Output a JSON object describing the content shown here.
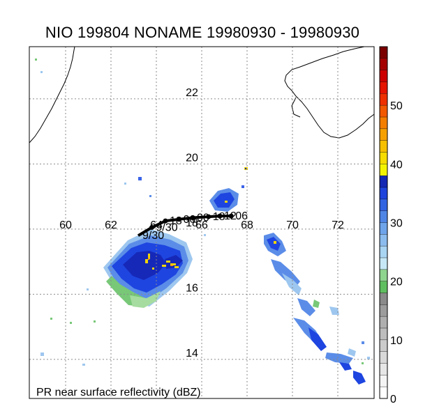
{
  "title": "NIO 199804 NONAME 19980930 - 19980930",
  "caption": "PR near surface reflectivity (dBZ)",
  "map": {
    "lon_range": [
      58.4,
      73.6
    ],
    "lat_range": [
      12.8,
      23.6
    ],
    "lon_ticks": [
      {
        "lon": 60,
        "label": "60"
      },
      {
        "lon": 62,
        "label": "62"
      },
      {
        "lon": 64,
        "label": "64"
      },
      {
        "lon": 66,
        "label": "66"
      },
      {
        "lon": 68,
        "label": "68"
      },
      {
        "lon": 70,
        "label": "70"
      },
      {
        "lon": 72,
        "label": "72"
      }
    ],
    "lat_ticks": [
      {
        "lat": 14,
        "label": "14"
      },
      {
        "lat": 16,
        "label": "16"
      },
      {
        "lat": 18,
        "label": "18"
      },
      {
        "lat": 20,
        "label": "20"
      },
      {
        "lat": 22,
        "label": "22"
      }
    ],
    "grid": true,
    "track": {
      "points": [
        [
          63.2,
          17.8
        ],
        [
          63.8,
          18.05
        ],
        [
          64.4,
          18.25
        ],
        [
          65.0,
          18.3
        ],
        [
          65.6,
          18.35
        ],
        [
          66.3,
          18.38
        ],
        [
          66.8,
          18.4
        ],
        [
          67.3,
          18.4
        ]
      ],
      "labels": [
        "9/30",
        "9/30",
        "18",
        "06",
        "00",
        "18",
        "12",
        "06"
      ],
      "color": "#000000"
    }
  },
  "colorbar": {
    "min": 0,
    "max": 60,
    "ticks": [
      {
        "value": 0,
        "label": "0"
      },
      {
        "value": 10,
        "label": "10"
      },
      {
        "value": 20,
        "label": "20"
      },
      {
        "value": 30,
        "label": "30"
      },
      {
        "value": 40,
        "label": "40"
      },
      {
        "value": 50,
        "label": "50"
      }
    ]
  }
}
